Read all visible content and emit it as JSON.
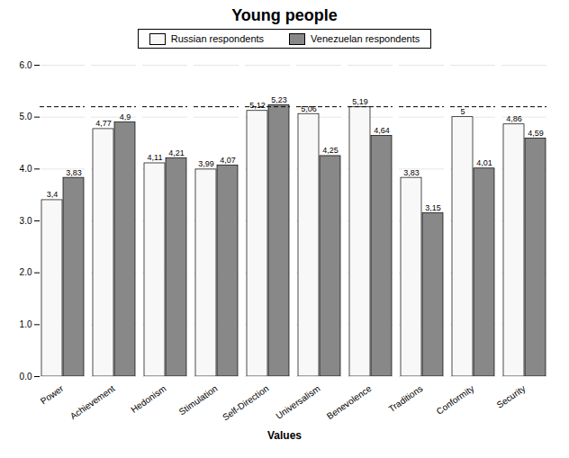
{
  "chart_data": {
    "type": "bar",
    "title": "Young people",
    "xlabel": "Values",
    "categories": [
      "Power",
      "Achievement",
      "Hedonism",
      "Stimulation",
      "Self-Direction",
      "Universalism",
      "Benevolence",
      "Traditions",
      "Conformity",
      "Security"
    ],
    "series": [
      {
        "name": "Russian respondents",
        "color": "#f8f8f8",
        "values": [
          3.4,
          4.77,
          4.11,
          3.99,
          5.12,
          5.06,
          5.19,
          3.83,
          5.0,
          4.86
        ],
        "value_labels": [
          "3,4",
          "4,77",
          "4,11",
          "3,99",
          "5,12",
          "5,06",
          "5,19",
          "3,83",
          "5",
          "4,86"
        ]
      },
      {
        "name": "Venezuelan respondents",
        "color": "#888888",
        "values": [
          3.83,
          4.9,
          4.21,
          4.07,
          5.23,
          4.25,
          4.64,
          3.15,
          4.01,
          4.59
        ],
        "value_labels": [
          "3,83",
          "4,9",
          "4,21",
          "4,07",
          "5,23",
          "4,25",
          "4,64",
          "3,15",
          "4,01",
          "4,59"
        ]
      }
    ],
    "ylim": [
      0,
      6
    ],
    "yticks": [
      0,
      1,
      2,
      3,
      4,
      5,
      6
    ],
    "grid": true,
    "data_labels": true,
    "legend": "top",
    "reference_line": {
      "y": 5.2,
      "line_style": "dashed"
    }
  }
}
